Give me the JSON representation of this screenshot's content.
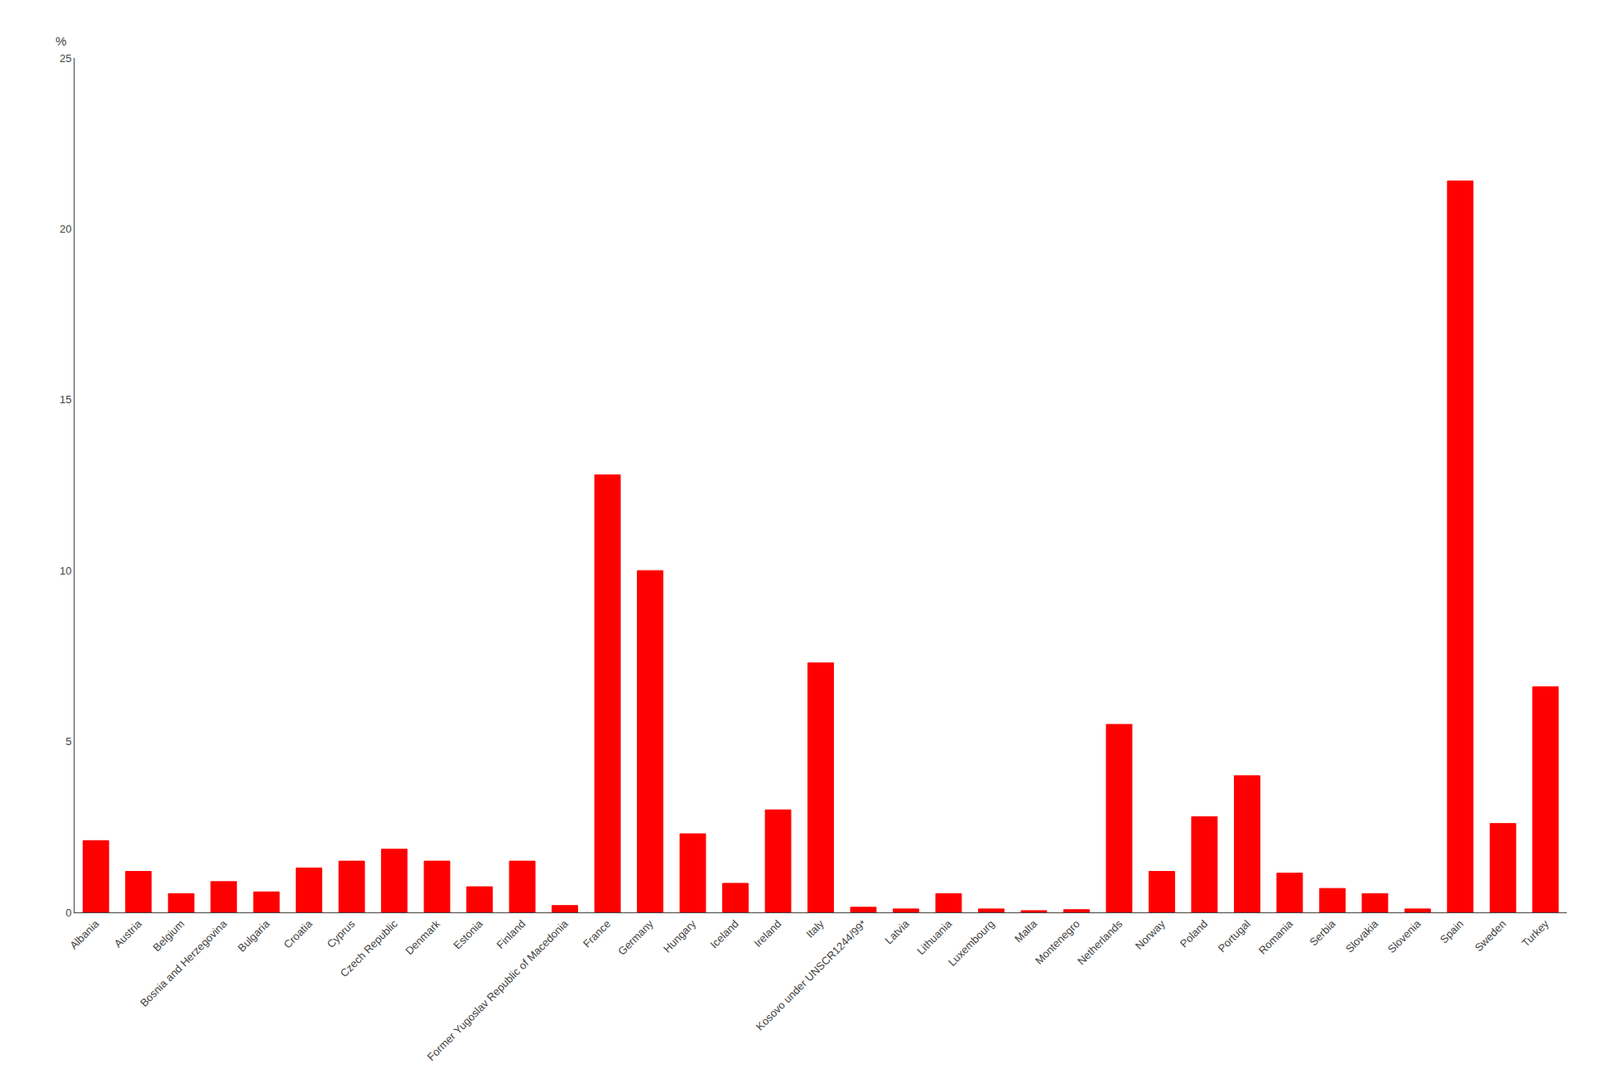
{
  "chart_data": {
    "type": "bar",
    "ylabel": "%",
    "categories": [
      "Albania",
      "Austria",
      "Belgium",
      "Bosnia and Herzegovina",
      "Bulgaria",
      "Croatia",
      "Cyprus",
      "Czech Republic",
      "Denmark",
      "Estonia",
      "Finland",
      "Former Yugoslav Republic of Macedonia",
      "France",
      "Germany",
      "Hungary",
      "Iceland",
      "Ireland",
      "Italy",
      "Kosovo under UNSCR1244/99*",
      "Latvia",
      "Lithuania",
      "Luxembourg",
      "Malta",
      "Montenegro",
      "Netherlands",
      "Norway",
      "Poland",
      "Portugal",
      "Romania",
      "Serbia",
      "Slovakia",
      "Slovenia",
      "Spain",
      "Sweden",
      "Turkey"
    ],
    "values": [
      2.1,
      1.2,
      0.55,
      0.9,
      0.6,
      1.3,
      1.5,
      1.85,
      1.5,
      0.75,
      1.5,
      0.2,
      12.8,
      10.0,
      2.3,
      0.85,
      3.0,
      7.3,
      0.15,
      0.1,
      0.55,
      0.1,
      0.05,
      0.08,
      5.5,
      1.2,
      2.8,
      4.0,
      1.15,
      0.7,
      0.55,
      0.1,
      21.4,
      2.6,
      6.6
    ],
    "color": "#ff0000",
    "ylim": [
      0,
      25
    ],
    "yticks": [
      0,
      5,
      10,
      15,
      20,
      25
    ],
    "grid": false
  }
}
